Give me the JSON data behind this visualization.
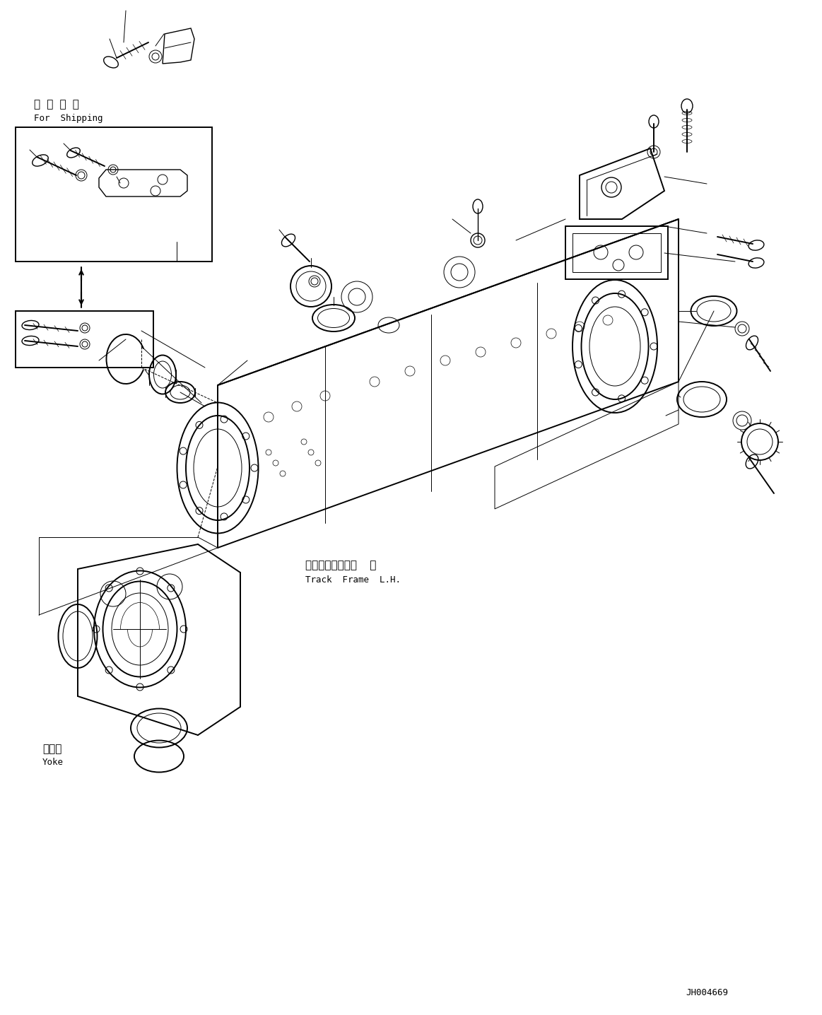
{
  "bg_color": "#ffffff",
  "fig_width": 11.63,
  "fig_height": 14.36,
  "dpi": 100,
  "label_jh": "JH004669",
  "shipping_jp": "運 搜 部 品",
  "shipping_en": "For  Shipping",
  "track_frame_jp": "トラックフレーム  左",
  "track_frame_en": "Track  Frame  L.H.",
  "yoke_jp": "ヨーク",
  "yoke_en": "Yoke"
}
